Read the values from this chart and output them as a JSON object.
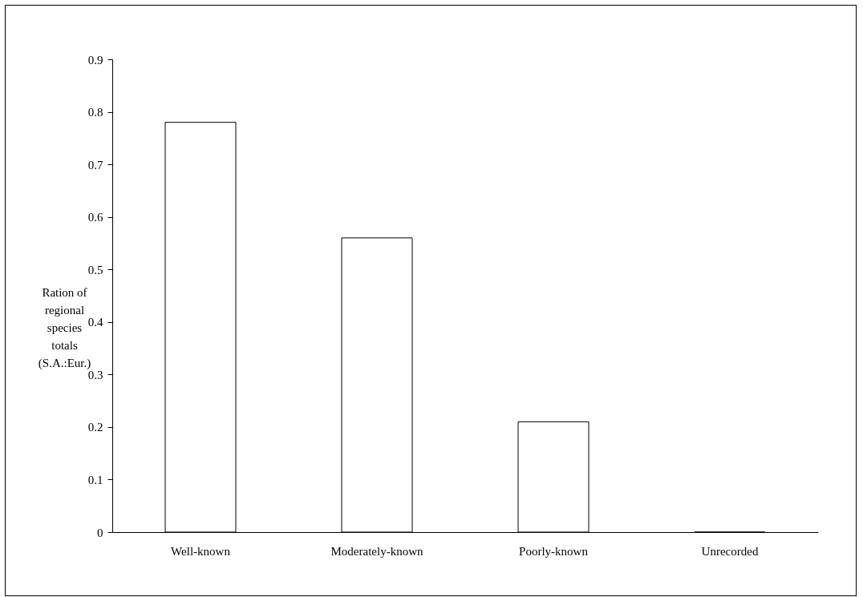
{
  "chart_data": {
    "type": "bar",
    "ylabel": "Ration of regional species totals (S.A.:Eur.)",
    "categories": [
      "Well-known",
      "Moderately-known",
      "Poorly-known",
      "Unrecorded"
    ],
    "values": [
      0.78,
      0.56,
      0.21,
      0
    ],
    "color": "#ffffff",
    "ylim": [
      0,
      0.9
    ],
    "yticks": [
      0,
      0.1,
      0.2,
      0.3,
      0.4,
      0.5,
      0.6,
      0.7,
      0.8,
      0.9
    ],
    "grid": false
  }
}
